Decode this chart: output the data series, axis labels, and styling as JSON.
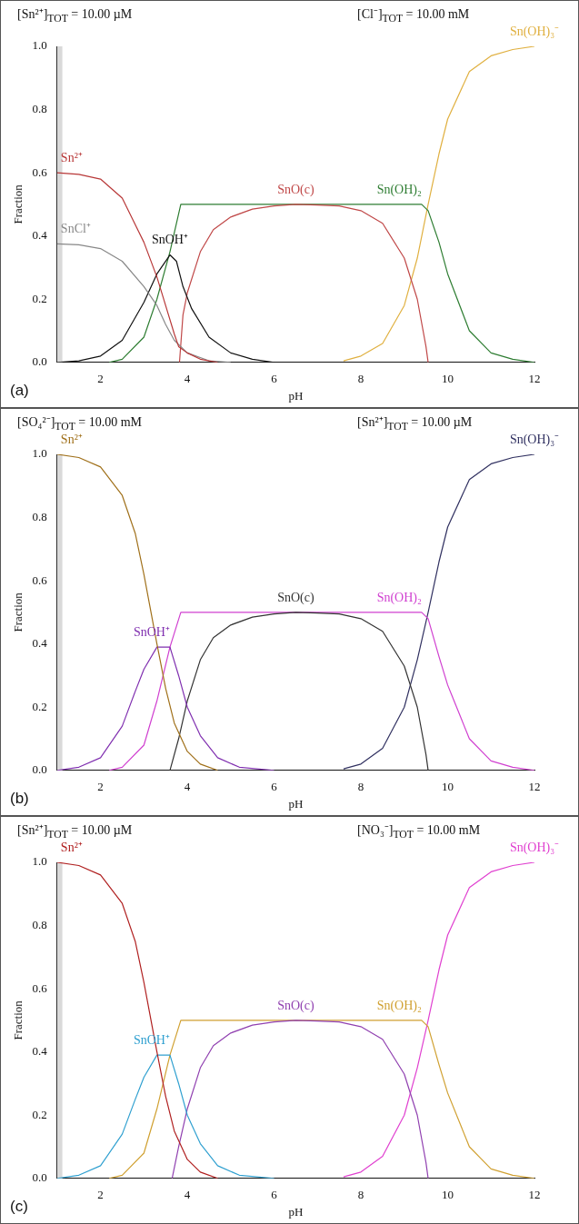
{
  "chart_data": [
    {
      "type": "line",
      "title": "[Sn²⁺]$_{TOT}$ =   10.00 µM",
      "subtitle": "[Cl⁻]$_{TOT}$ =   10.00 mM",
      "xlabel": "pH",
      "ylabel": "Fraction",
      "annotations": [
        "(a)"
      ],
      "xlim": [
        1,
        12
      ],
      "xticks": [
        2,
        4,
        6,
        8,
        10,
        12
      ],
      "ylim": [
        0,
        1
      ],
      "yticks": [
        {
          "value": 0,
          "label": "0.0"
        },
        {
          "value": 0.2,
          "label": "0.2"
        },
        {
          "value": 0.4,
          "label": "0.4"
        },
        {
          "value": 0.6,
          "label": "0.6"
        },
        {
          "value": 0.8,
          "label": "0.8"
        },
        {
          "value": 1,
          "label": "1.0"
        }
      ],
      "bands": [
        {
          "axis": "x",
          "from": 1,
          "to": 1.12,
          "color": "#d9d9d9"
        }
      ],
      "legend": false,
      "grid": false,
      "series": [
        {
          "name": "Sn²⁺",
          "color": "#b83838",
          "x": [
            1,
            1.5,
            2,
            2.5,
            3,
            3.3,
            3.5,
            3.7,
            3.8,
            4,
            4.3,
            4.7
          ],
          "values": [
            0.6,
            0.595,
            0.58,
            0.52,
            0.38,
            0.27,
            0.18,
            0.09,
            0.05,
            0.03,
            0.01,
            0
          ]
        },
        {
          "name": "SnCl⁺",
          "color": "#888888",
          "x": [
            1,
            1.5,
            2,
            2.5,
            3,
            3.3,
            3.5,
            3.7,
            4,
            4.5,
            5
          ],
          "values": [
            0.375,
            0.372,
            0.36,
            0.32,
            0.24,
            0.18,
            0.12,
            0.07,
            0.03,
            0.005,
            0
          ]
        },
        {
          "name": "SnOH⁺",
          "color": "#111111",
          "x": [
            1,
            1.5,
            2,
            2.5,
            3,
            3.3,
            3.6,
            3.75,
            3.9,
            4.1,
            4.5,
            5,
            5.5,
            6
          ],
          "values": [
            0,
            0.005,
            0.02,
            0.07,
            0.19,
            0.28,
            0.34,
            0.32,
            0.24,
            0.17,
            0.08,
            0.03,
            0.01,
            0
          ]
        },
        {
          "name": "SnO(c)",
          "color": "#c04848",
          "x": [
            3.82,
            3.9,
            4,
            4.3,
            4.6,
            5,
            5.5,
            6,
            6.5,
            7,
            7.5,
            8,
            8.5,
            9,
            9.3,
            9.5,
            9.55
          ],
          "values": [
            0,
            0.15,
            0.22,
            0.35,
            0.42,
            0.46,
            0.485,
            0.495,
            0.5,
            0.498,
            0.495,
            0.48,
            0.44,
            0.33,
            0.2,
            0.05,
            0
          ]
        },
        {
          "name": "Sn(OH)₂",
          "color": "#2e7d32",
          "x": [
            2.2,
            2.5,
            3,
            3.3,
            3.6,
            3.85,
            9.4,
            9.55,
            9.8,
            10,
            10.5,
            11,
            11.5,
            12
          ],
          "values": [
            0,
            0.01,
            0.08,
            0.2,
            0.35,
            0.5,
            0.5,
            0.48,
            0.38,
            0.28,
            0.1,
            0.03,
            0.01,
            0
          ]
        },
        {
          "name": "Sn(OH)₃⁻",
          "color": "#e0b040",
          "x": [
            7.6,
            8,
            8.5,
            9,
            9.3,
            9.55,
            9.8,
            10,
            10.5,
            11,
            11.5,
            12
          ],
          "values": [
            0.005,
            0.02,
            0.06,
            0.18,
            0.33,
            0.5,
            0.66,
            0.77,
            0.92,
            0.97,
            0.99,
            1
          ]
        }
      ]
    },
    {
      "type": "line",
      "title": "[SO₄²⁻]$_{TOT}$ =   10.00 mM",
      "subtitle": "[Sn²⁺]$_{TOT}$ =   10.00 µM",
      "xlabel": "pH",
      "ylabel": "Fraction",
      "annotations": [
        "(b)"
      ],
      "xlim": [
        1,
        12
      ],
      "xticks": [
        2,
        4,
        6,
        8,
        10,
        12
      ],
      "ylim": [
        0,
        1
      ],
      "yticks": [
        {
          "value": 0,
          "label": "0.0"
        },
        {
          "value": 0.2,
          "label": "0.2"
        },
        {
          "value": 0.4,
          "label": "0.4"
        },
        {
          "value": 0.6,
          "label": "0.6"
        },
        {
          "value": 0.8,
          "label": "0.8"
        },
        {
          "value": 1,
          "label": "1.0"
        }
      ],
      "bands": [
        {
          "axis": "x",
          "from": 1,
          "to": 1.12,
          "color": "#d9d9d9"
        }
      ],
      "legend": false,
      "grid": false,
      "series": [
        {
          "name": "Sn²⁺",
          "color": "#a0701a",
          "x": [
            1,
            1.5,
            2,
            2.5,
            2.8,
            3,
            3.3,
            3.5,
            3.7,
            4,
            4.3,
            4.7
          ],
          "values": [
            1,
            0.99,
            0.96,
            0.87,
            0.75,
            0.62,
            0.4,
            0.26,
            0.15,
            0.06,
            0.02,
            0
          ]
        },
        {
          "name": "SnOH⁺",
          "color": "#8030b0",
          "x": [
            1,
            1.5,
            2,
            2.5,
            2.8,
            3,
            3.3,
            3.6,
            3.8,
            4,
            4.3,
            4.7,
            5.2,
            6
          ],
          "values": [
            0,
            0.01,
            0.04,
            0.14,
            0.25,
            0.32,
            0.39,
            0.39,
            0.3,
            0.2,
            0.11,
            0.04,
            0.01,
            0
          ]
        },
        {
          "name": "SnO(c)",
          "color": "#333333",
          "x": [
            3.6,
            3.8,
            4,
            4.3,
            4.6,
            5,
            5.5,
            6,
            6.5,
            7,
            7.5,
            8,
            8.5,
            9,
            9.3,
            9.5,
            9.55
          ],
          "values": [
            0,
            0.1,
            0.22,
            0.35,
            0.42,
            0.46,
            0.485,
            0.495,
            0.5,
            0.498,
            0.495,
            0.48,
            0.44,
            0.33,
            0.2,
            0.05,
            0
          ]
        },
        {
          "name": "Sn(OH)₂",
          "color": "#d040d0",
          "x": [
            2.2,
            2.5,
            3,
            3.3,
            3.6,
            3.85,
            9.4,
            9.55,
            9.8,
            10,
            10.5,
            11,
            11.5,
            12
          ],
          "values": [
            0,
            0.01,
            0.08,
            0.22,
            0.39,
            0.5,
            0.5,
            0.48,
            0.36,
            0.27,
            0.1,
            0.03,
            0.01,
            0
          ]
        },
        {
          "name": "Sn(OH)₃⁻",
          "color": "#303060",
          "x": [
            7.6,
            8,
            8.5,
            9,
            9.3,
            9.55,
            9.8,
            10,
            10.5,
            11,
            11.5,
            12
          ],
          "values": [
            0.005,
            0.02,
            0.07,
            0.2,
            0.35,
            0.5,
            0.66,
            0.77,
            0.92,
            0.97,
            0.99,
            1
          ]
        }
      ]
    },
    {
      "type": "line",
      "title": "[Sn²⁺]$_{TOT}$ =   10.00 µM",
      "subtitle": "[NO₃⁻]$_{TOT}$ =   10.00 mM",
      "xlabel": "pH",
      "ylabel": "Fraction",
      "annotations": [
        "(c)"
      ],
      "xlim": [
        1,
        12
      ],
      "xticks": [
        2,
        4,
        6,
        8,
        10,
        12
      ],
      "ylim": [
        0,
        1
      ],
      "yticks": [
        {
          "value": 0,
          "label": "0.0"
        },
        {
          "value": 0.2,
          "label": "0.2"
        },
        {
          "value": 0.4,
          "label": "0.4"
        },
        {
          "value": 0.6,
          "label": "0.6"
        },
        {
          "value": 0.8,
          "label": "0.8"
        },
        {
          "value": 1,
          "label": "1.0"
        }
      ],
      "bands": [
        {
          "axis": "x",
          "from": 1,
          "to": 1.12,
          "color": "#d9d9d9"
        }
      ],
      "legend": false,
      "grid": false,
      "series": [
        {
          "name": "Sn²⁺",
          "color": "#b02020",
          "x": [
            1,
            1.5,
            2,
            2.5,
            2.8,
            3,
            3.3,
            3.5,
            3.7,
            4,
            4.3,
            4.7
          ],
          "values": [
            1,
            0.99,
            0.96,
            0.87,
            0.75,
            0.62,
            0.4,
            0.26,
            0.15,
            0.06,
            0.02,
            0
          ]
        },
        {
          "name": "SnOH⁺",
          "color": "#30a0d0",
          "x": [
            1,
            1.5,
            2,
            2.5,
            2.8,
            3,
            3.3,
            3.6,
            3.8,
            4,
            4.3,
            4.7,
            5.2,
            6
          ],
          "values": [
            0,
            0.01,
            0.04,
            0.14,
            0.25,
            0.32,
            0.39,
            0.39,
            0.3,
            0.2,
            0.11,
            0.04,
            0.01,
            0
          ]
        },
        {
          "name": "SnO(c)",
          "color": "#9040b0",
          "x": [
            3.65,
            3.8,
            4,
            4.3,
            4.6,
            5,
            5.5,
            6,
            6.5,
            7,
            7.5,
            8,
            8.5,
            9,
            9.3,
            9.5,
            9.55
          ],
          "values": [
            0,
            0.1,
            0.22,
            0.35,
            0.42,
            0.46,
            0.485,
            0.495,
            0.5,
            0.498,
            0.495,
            0.48,
            0.44,
            0.33,
            0.2,
            0.05,
            0
          ]
        },
        {
          "name": "Sn(OH)₂",
          "color": "#d0a030",
          "x": [
            2.2,
            2.5,
            3,
            3.3,
            3.6,
            3.85,
            9.4,
            9.55,
            9.8,
            10,
            10.5,
            11,
            11.5,
            12
          ],
          "values": [
            0,
            0.01,
            0.08,
            0.22,
            0.39,
            0.5,
            0.5,
            0.48,
            0.36,
            0.27,
            0.1,
            0.03,
            0.01,
            0
          ]
        },
        {
          "name": "Sn(OH)₃⁻",
          "color": "#e040d0",
          "x": [
            7.6,
            8,
            8.5,
            9,
            9.3,
            9.55,
            9.8,
            10,
            10.5,
            11,
            11.5,
            12
          ],
          "values": [
            0.005,
            0.02,
            0.07,
            0.2,
            0.35,
            0.5,
            0.66,
            0.77,
            0.92,
            0.97,
            0.99,
            1
          ]
        }
      ]
    }
  ]
}
